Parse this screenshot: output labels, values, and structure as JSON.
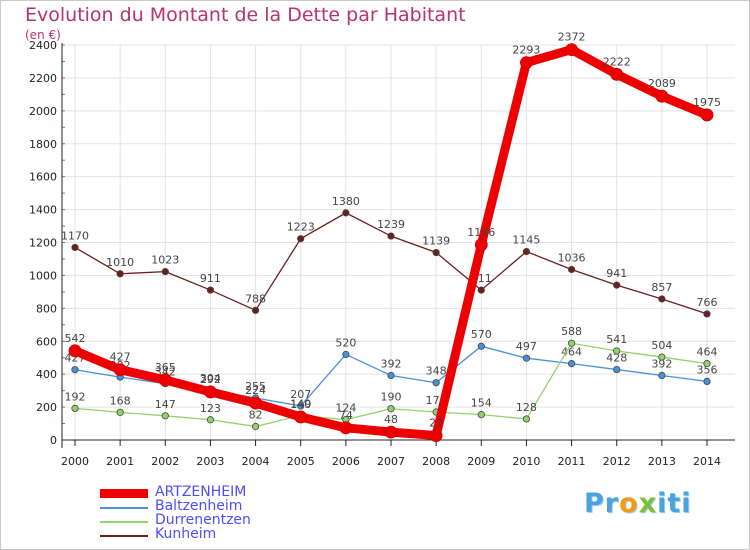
{
  "title": "Evolution du Montant de la Dette par Habitant",
  "unit_label": "(en €)",
  "logo_text": "Proxiti",
  "chart_data": {
    "type": "line",
    "x": [
      "2000",
      "2001",
      "2002",
      "2003",
      "2004",
      "2005",
      "2006",
      "2007",
      "2008",
      "2009",
      "2010",
      "2011",
      "2012",
      "2013",
      "2014"
    ],
    "ylim": [
      0,
      2400
    ],
    "yticks": [
      0,
      200,
      400,
      600,
      800,
      1000,
      1200,
      1400,
      1600,
      1800,
      2000,
      2200,
      2400
    ],
    "grid": true,
    "legend_position": "bottom-left",
    "series": [
      {
        "name": "Kunheim",
        "color": "#6b1f1f",
        "values": [
          1170,
          1010,
          1023,
          911,
          788,
          1223,
          1380,
          1239,
          1139,
          911,
          1145,
          1036,
          941,
          857,
          766
        ]
      },
      {
        "name": "Baltzenheim",
        "color": "#4a90d9",
        "values": [
          427,
          382,
          342,
          304,
          255,
          207,
          520,
          392,
          348,
          570,
          497,
          464,
          428,
          392,
          356
        ]
      },
      {
        "name": "Durrenentzen",
        "color": "#8fd46b",
        "values": [
          192,
          168,
          147,
          123,
          82,
          149,
          124,
          190,
          170,
          154,
          128,
          588,
          541,
          504,
          464
        ]
      },
      {
        "name": "ARTZENHEIM",
        "color": "#ee0000",
        "values": [
          542,
          427,
          365,
          292,
          224,
          140,
          74,
          48,
          27,
          1186,
          2293,
          2372,
          2222,
          2089,
          1975
        ]
      }
    ]
  }
}
